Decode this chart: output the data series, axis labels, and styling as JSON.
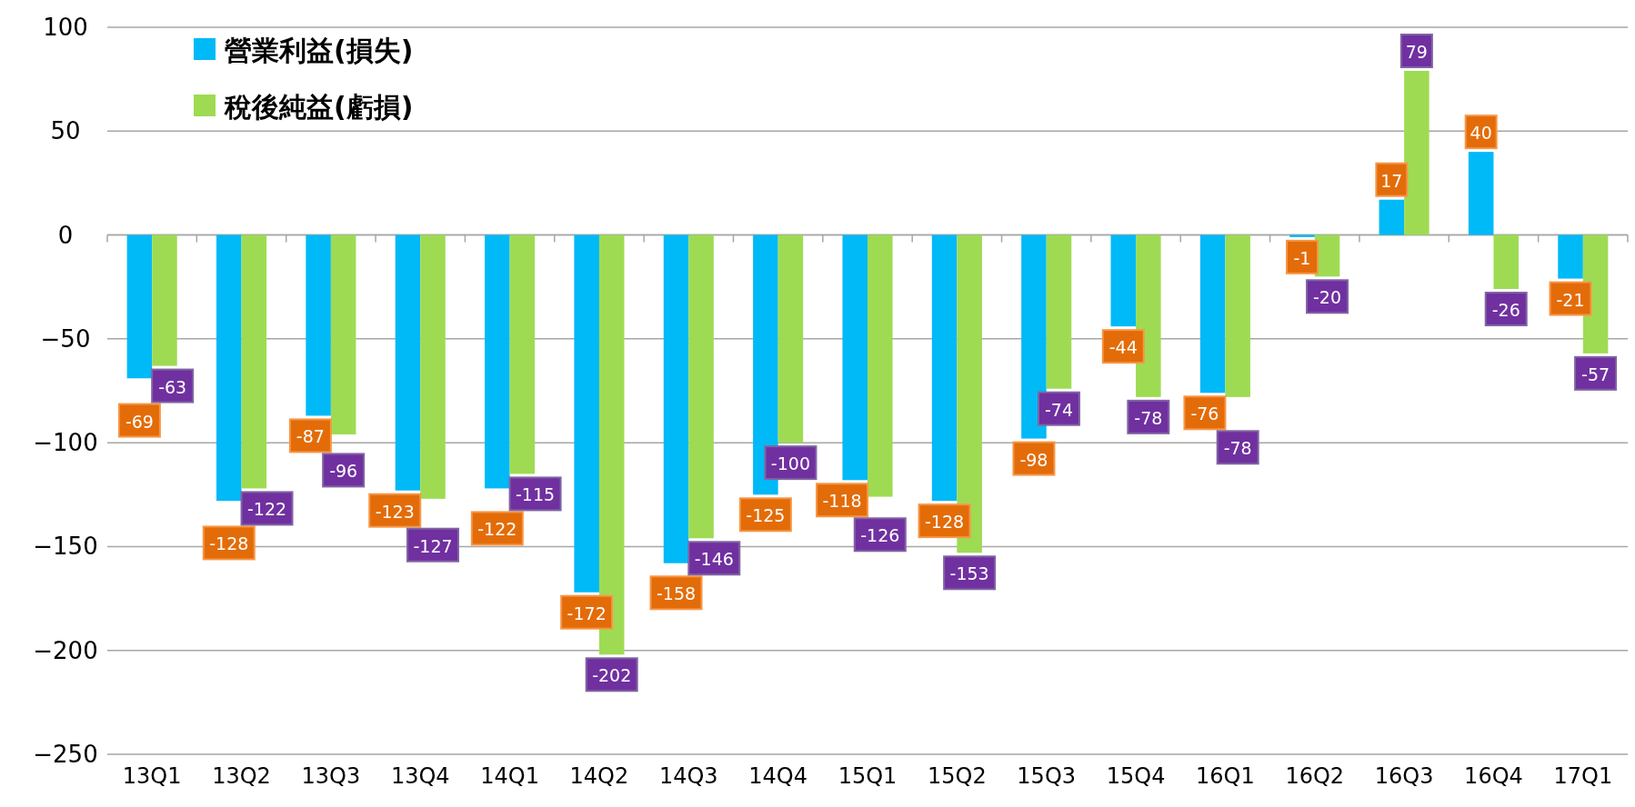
{
  "chart_data": {
    "type": "bar",
    "categories": [
      "13Q1",
      "13Q2",
      "13Q3",
      "13Q4",
      "14Q1",
      "14Q2",
      "14Q3",
      "14Q4",
      "15Q1",
      "15Q2",
      "15Q3",
      "15Q4",
      "16Q1",
      "16Q2",
      "16Q3",
      "16Q4",
      "17Q1"
    ],
    "series": [
      {
        "name": "營業利益(損失)",
        "color": "#00b9f7",
        "values": [
          -69,
          -128,
          -87,
          -123,
          -122,
          -172,
          -158,
          -125,
          -118,
          -128,
          -98,
          -44,
          -76,
          -1,
          17,
          40,
          -21
        ]
      },
      {
        "name": "稅後純益(虧損)",
        "color": "#9edb53",
        "values": [
          -63,
          -122,
          -96,
          -127,
          -115,
          -202,
          -146,
          -100,
          -126,
          -153,
          -74,
          -78,
          -78,
          -20,
          79,
          -26,
          -57
        ]
      }
    ],
    "ylim": [
      -250,
      100
    ],
    "yticks": [
      -250,
      -200,
      -150,
      -100,
      -50,
      0,
      50,
      100
    ],
    "grid": "y",
    "legend": "top left",
    "data_labels": true
  }
}
